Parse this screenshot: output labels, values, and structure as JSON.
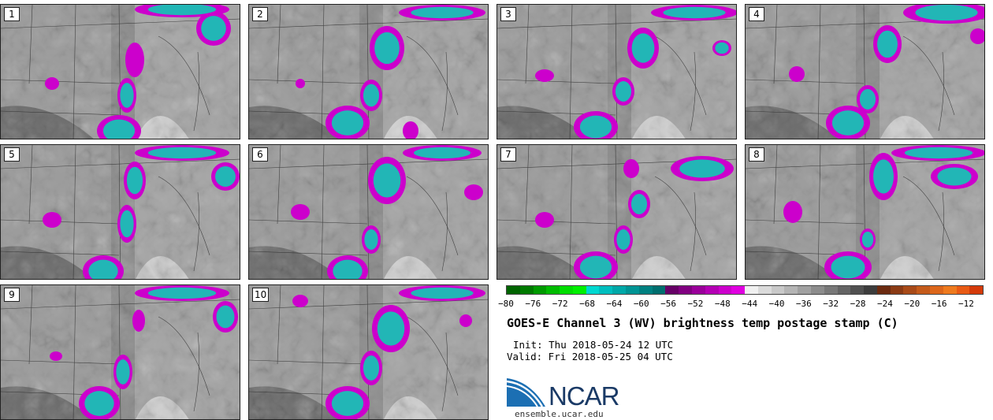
{
  "panels": [
    {
      "label": "1"
    },
    {
      "label": "2"
    },
    {
      "label": "3"
    },
    {
      "label": "4"
    },
    {
      "label": "5"
    },
    {
      "label": "6"
    },
    {
      "label": "7"
    },
    {
      "label": "8"
    },
    {
      "label": "9"
    },
    {
      "label": "10"
    }
  ],
  "colorbar": {
    "ticks": [
      "-80",
      "-76",
      "-72",
      "-68",
      "-64",
      "-60",
      "-56",
      "-52",
      "-48",
      "-44",
      "-40",
      "-36",
      "-32",
      "-28",
      "-24",
      "-20",
      "-16",
      "-12"
    ],
    "colors": [
      "#006400",
      "#007a00",
      "#009a00",
      "#00bb00",
      "#00dd00",
      "#00f000",
      "#00d8d0",
      "#00bebe",
      "#00a8a8",
      "#009494",
      "#008080",
      "#006e6e",
      "#660066",
      "#800080",
      "#9a009a",
      "#b400b4",
      "#cc00cc",
      "#e000e0",
      "#f0f0f0",
      "#dadada",
      "#c8c8c8",
      "#b4b4b4",
      "#a0a0a0",
      "#8c8c8c",
      "#787878",
      "#646464",
      "#505050",
      "#3c3c3c",
      "#6b2a10",
      "#8a3a14",
      "#a84a18",
      "#c45a1a",
      "#dc661a",
      "#ee7a1e",
      "#e85a14",
      "#d43a0a"
    ]
  },
  "title": "GOES-E Channel 3 (WV) brightness temp postage stamp (C)",
  "init": "Init: Thu 2018-05-24 12 UTC",
  "valid": "Valid: Fri 2018-05-25 04 UTC",
  "logo": {
    "text": "NCAR",
    "site": "ensemble.ucar.edu"
  },
  "style": {
    "cyan": "#22b6b6",
    "magenta": "#cc00cc",
    "gray_light": "#b8b8b8",
    "gray_dark": "#707070"
  }
}
